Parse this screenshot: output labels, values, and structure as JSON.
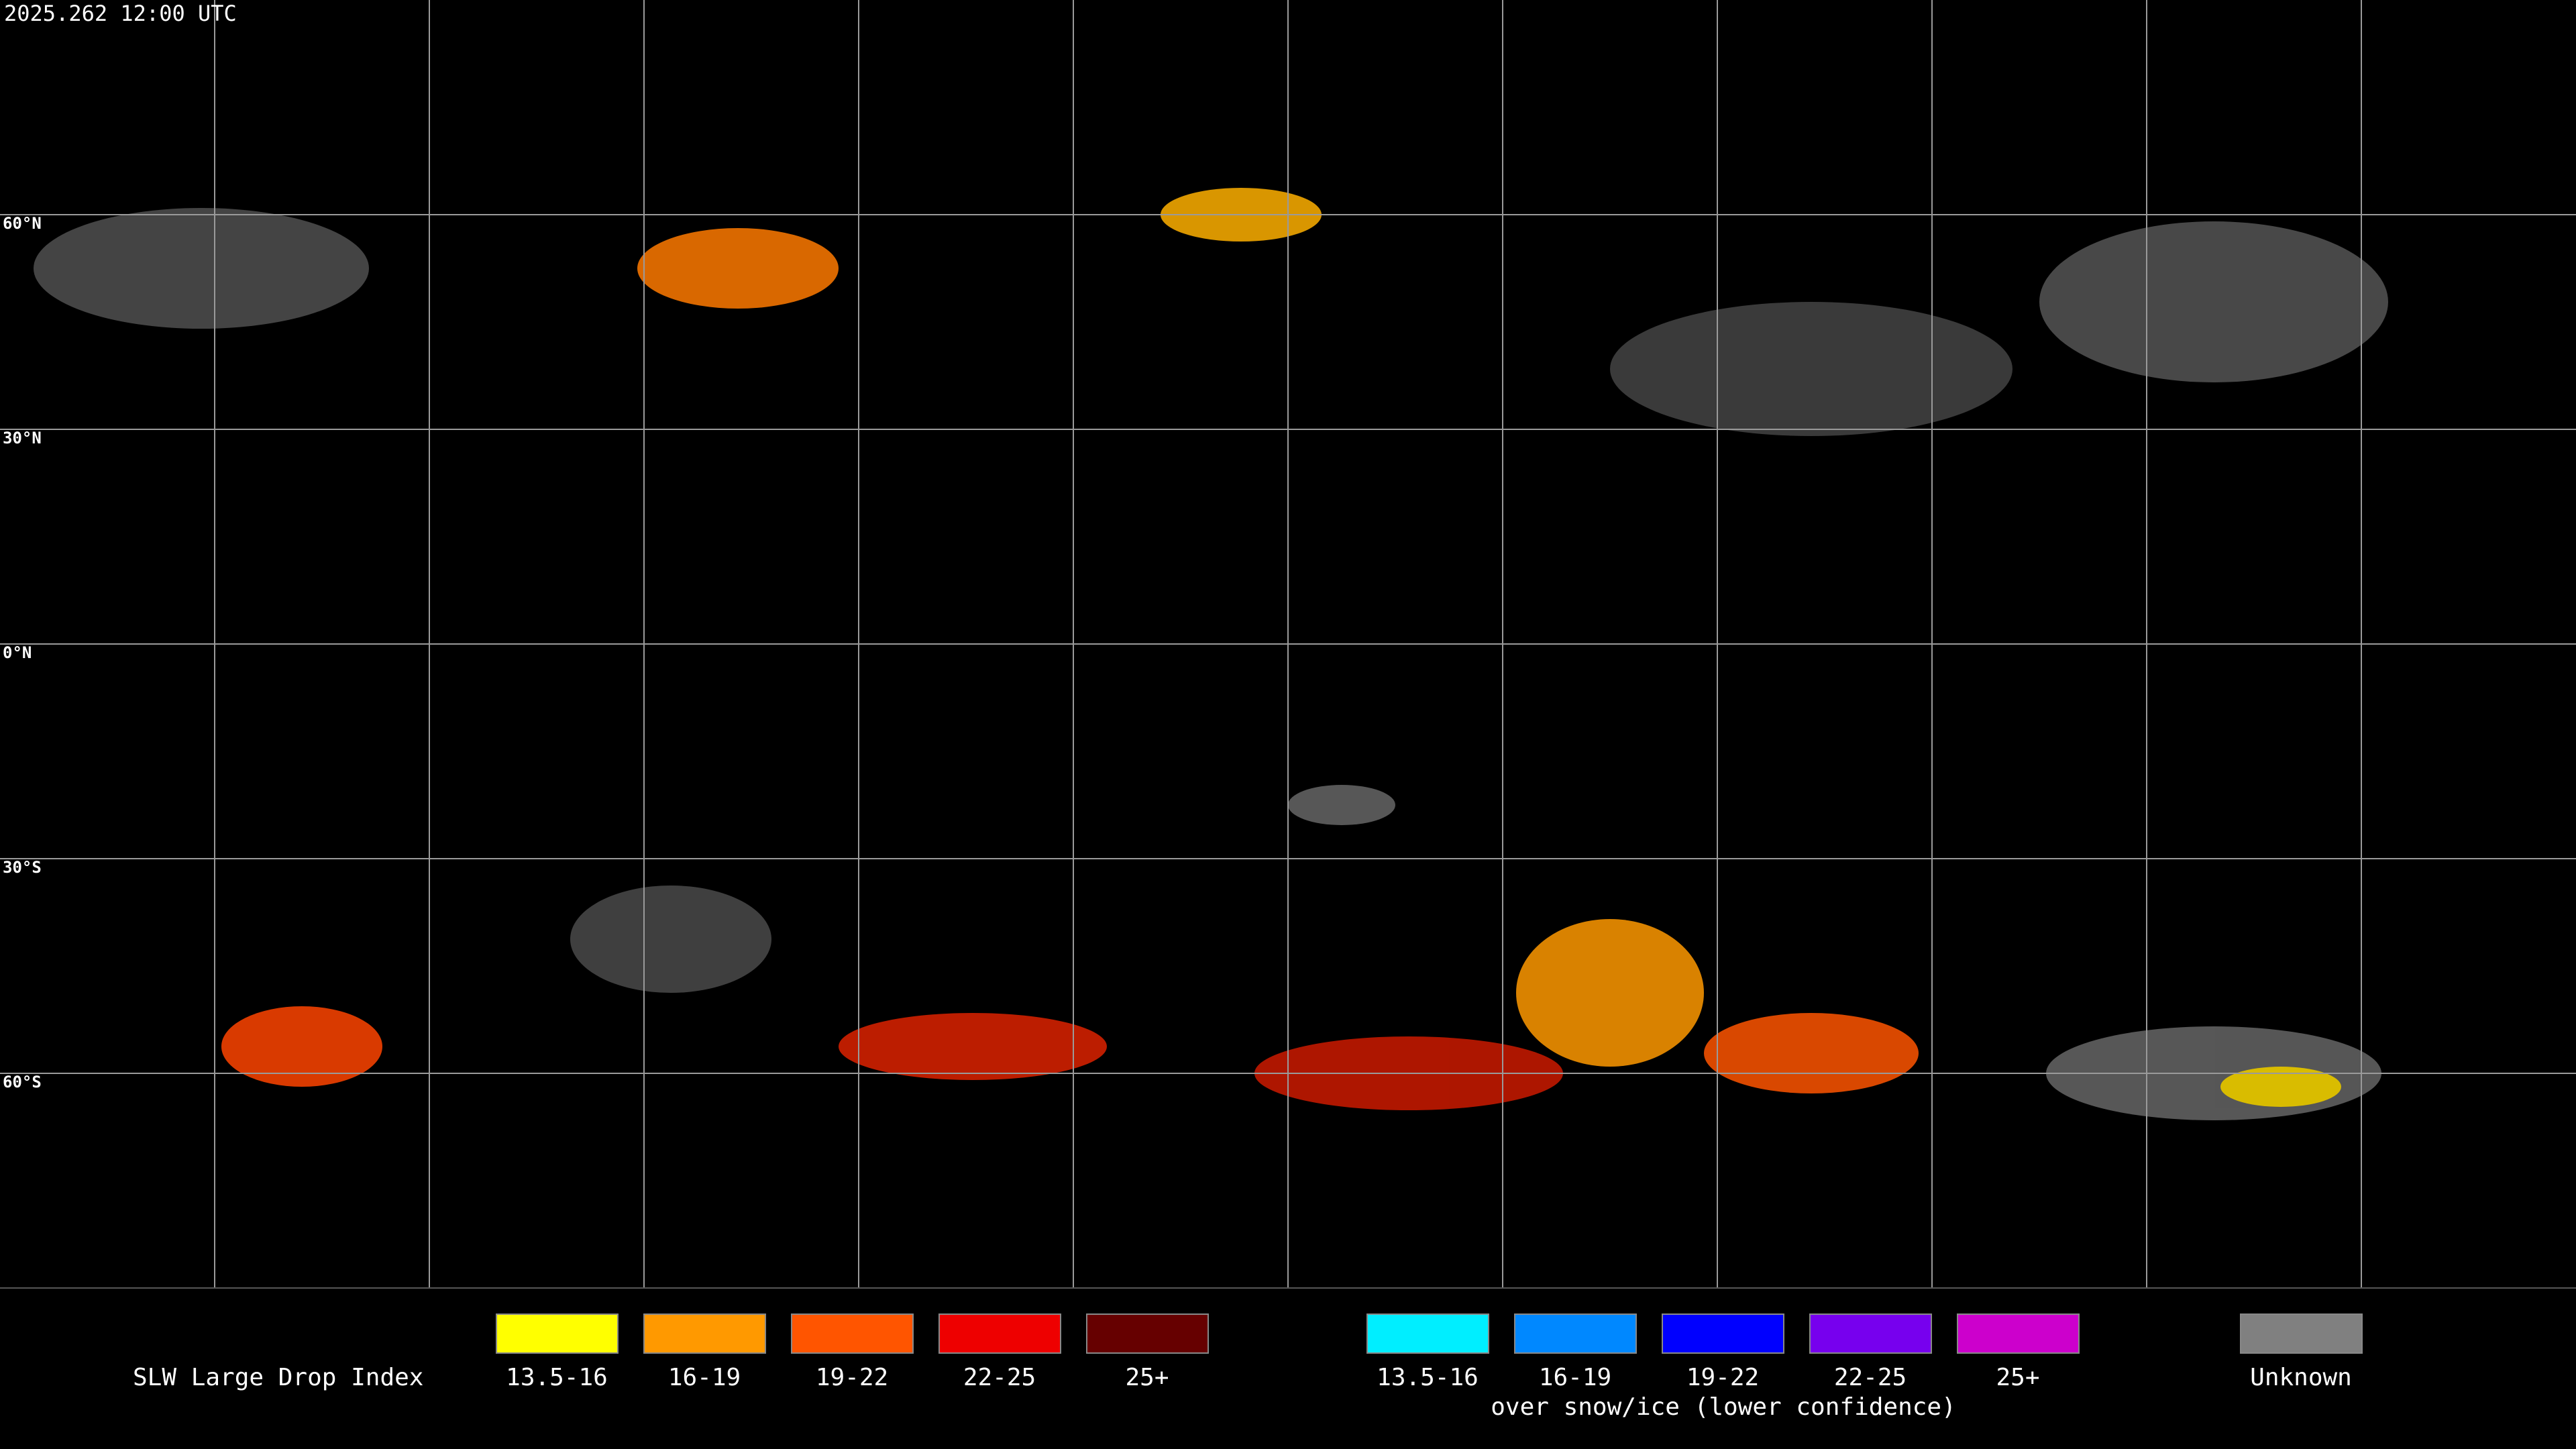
{
  "header": {
    "title": "2025.262 12:00 UTC"
  },
  "map": {
    "lat_labels": [
      "60°N",
      "30°N",
      "0°N",
      "30°S",
      "60°S"
    ]
  },
  "legend": {
    "title": "SLW Large Drop Index",
    "groups": [
      {
        "items": [
          {
            "label": "13.5-16",
            "color": "#ffff00"
          },
          {
            "label": "16-19",
            "color": "#ff9900"
          },
          {
            "label": "19-22",
            "color": "#ff5500"
          },
          {
            "label": "22-25",
            "color": "#ee0000"
          },
          {
            "label": "25+",
            "color": "#660000"
          }
        ]
      },
      {
        "caption": "over snow/ice (lower confidence)",
        "items": [
          {
            "label": "13.5-16",
            "color": "#00eeff"
          },
          {
            "label": "16-19",
            "color": "#0088ff"
          },
          {
            "label": "19-22",
            "color": "#0000ff"
          },
          {
            "label": "22-25",
            "color": "#7700ee"
          },
          {
            "label": "25+",
            "color": "#cc00cc"
          }
        ]
      },
      {
        "items": [
          {
            "label": "Unknown",
            "color": "#808080"
          }
        ]
      }
    ]
  }
}
